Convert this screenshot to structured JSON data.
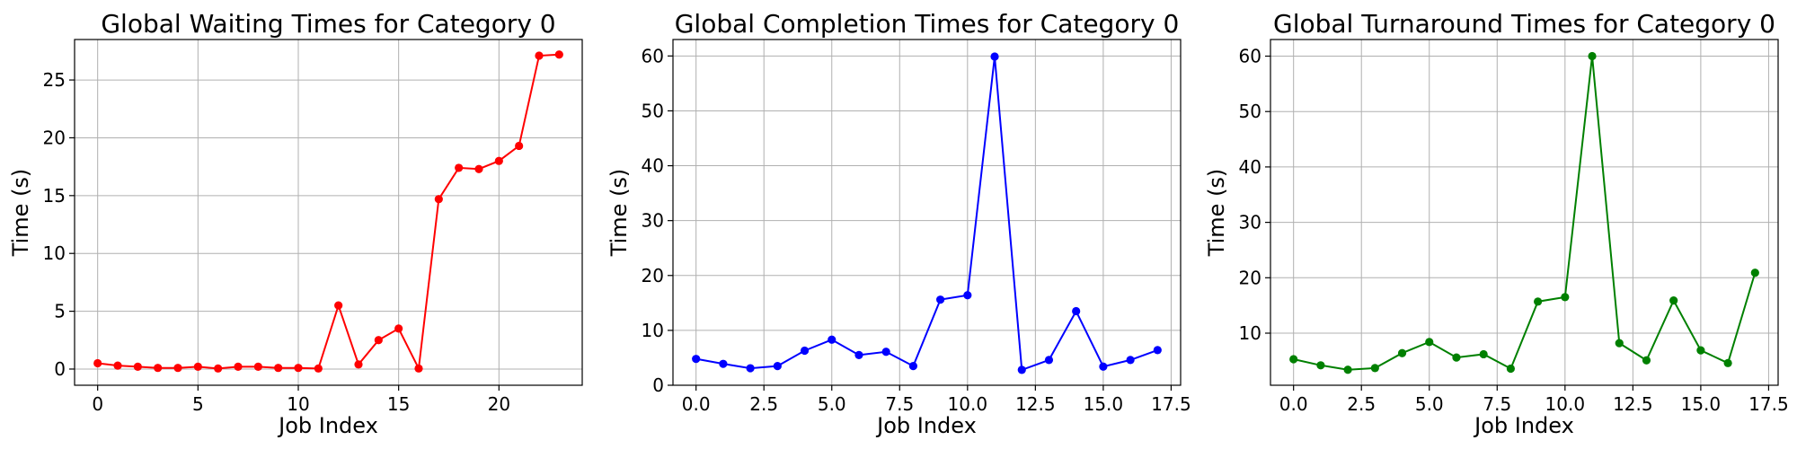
{
  "chart_data": [
    {
      "type": "line",
      "title": "Global Waiting Times for Category 0",
      "xlabel": "Job Index",
      "ylabel": "Time (s)",
      "xlim": [
        -1.15,
        24.15
      ],
      "ylim": [
        -1.4,
        28.5
      ],
      "xticks": [
        0,
        5,
        10,
        15,
        20
      ],
      "xtick_labels": [
        "0",
        "5",
        "10",
        "15",
        "20"
      ],
      "yticks": [
        0,
        5,
        10,
        15,
        20,
        25
      ],
      "ytick_labels": [
        "0",
        "5",
        "10",
        "15",
        "20",
        "25"
      ],
      "grid": true,
      "color": "#ff0000",
      "series": [
        {
          "x": [
            0,
            1,
            2,
            3,
            4,
            5,
            6,
            7,
            8,
            9,
            10,
            11,
            12,
            13,
            14,
            15,
            16,
            17,
            18,
            19,
            20,
            21,
            22,
            23
          ],
          "values": [
            0.5,
            0.3,
            0.2,
            0.1,
            0.1,
            0.2,
            0.05,
            0.2,
            0.2,
            0.1,
            0.1,
            0.05,
            5.5,
            0.4,
            2.5,
            3.5,
            0.05,
            14.7,
            17.4,
            17.3,
            18.0,
            19.3,
            27.1,
            27.2
          ]
        }
      ]
    },
    {
      "type": "line",
      "title": "Global Completion Times for Category 0",
      "xlabel": "Job Index",
      "ylabel": "Time (s)",
      "xlim": [
        -0.85,
        17.85
      ],
      "ylim": [
        0,
        63
      ],
      "xticks": [
        0,
        2.5,
        5,
        7.5,
        10,
        12.5,
        15,
        17.5
      ],
      "xtick_labels": [
        "0.0",
        "2.5",
        "5.0",
        "7.5",
        "10.0",
        "12.5",
        "15.0",
        "17.5"
      ],
      "yticks": [
        0,
        10,
        20,
        30,
        40,
        50,
        60
      ],
      "ytick_labels": [
        "0",
        "10",
        "20",
        "30",
        "40",
        "50",
        "60"
      ],
      "grid": true,
      "color": "#0000ff",
      "series": [
        {
          "x": [
            0,
            1,
            2,
            3,
            4,
            5,
            6,
            7,
            8,
            9,
            10,
            11,
            12,
            13,
            14,
            15,
            16,
            17
          ],
          "values": [
            4.8,
            3.9,
            3.1,
            3.5,
            6.3,
            8.3,
            5.5,
            6.1,
            3.5,
            15.6,
            16.4,
            59.9,
            2.8,
            4.6,
            13.5,
            3.4,
            4.6,
            6.4
          ]
        }
      ]
    },
    {
      "type": "line",
      "title": "Global Turnaround Times for Category 0",
      "xlabel": "Job Index",
      "ylabel": "Time (s)",
      "xlim": [
        -0.85,
        17.85
      ],
      "ylim": [
        0.6,
        63
      ],
      "xticks": [
        0,
        2.5,
        5,
        7.5,
        10,
        12.5,
        15,
        17.5
      ],
      "xtick_labels": [
        "0.0",
        "2.5",
        "5.0",
        "7.5",
        "10.0",
        "12.5",
        "15.0",
        "17.5"
      ],
      "yticks": [
        10,
        20,
        30,
        40,
        50,
        60
      ],
      "ytick_labels": [
        "10",
        "20",
        "30",
        "40",
        "50",
        "60"
      ],
      "grid": true,
      "color": "#008000",
      "series": [
        {
          "x": [
            0,
            1,
            2,
            3,
            4,
            5,
            6,
            7,
            8,
            9,
            10,
            11,
            12,
            13,
            14,
            15,
            16,
            17
          ],
          "values": [
            5.3,
            4.2,
            3.4,
            3.7,
            6.4,
            8.4,
            5.6,
            6.2,
            3.6,
            15.7,
            16.5,
            60.0,
            8.2,
            5.1,
            15.9,
            6.9,
            4.6,
            20.9
          ]
        }
      ]
    }
  ]
}
